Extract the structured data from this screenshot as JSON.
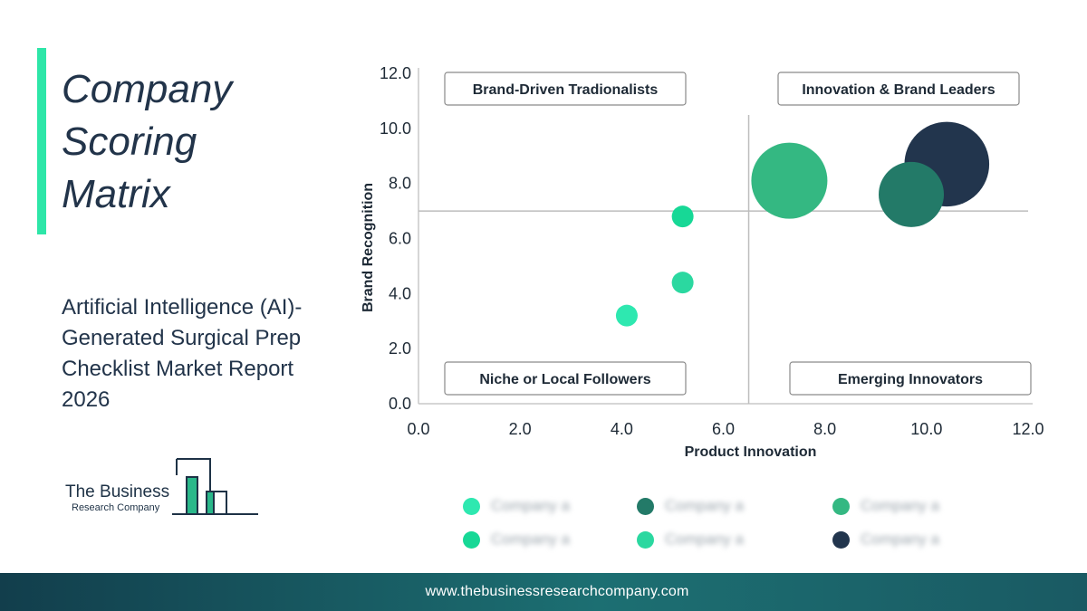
{
  "title_lines": [
    "Company",
    "Scoring",
    "Matrix"
  ],
  "subtitle_lines": [
    "Artificial Intelligence (AI)-",
    "Generated Surgical Prep",
    "Checklist Market Report",
    "2026"
  ],
  "logo": {
    "name": "The Business",
    "sub": "Research Company"
  },
  "footer": {
    "url": "www.thebusinessresearchcompany.com"
  },
  "colors": {
    "accent": "#2ee6a8",
    "footer": "#1a5c66",
    "text": "#1e3246"
  },
  "chart_data": {
    "type": "scatter",
    "xlabel": "Product Innovation",
    "ylabel": "Brand Recognition",
    "xlim": [
      0,
      12
    ],
    "ylim": [
      0,
      12
    ],
    "x_ticks": [
      "0.0",
      "2.0",
      "4.0",
      "6.0",
      "8.0",
      "10.0",
      "12.0"
    ],
    "y_ticks": [
      "0.0",
      "2.0",
      "4.0",
      "6.0",
      "8.0",
      "10.0",
      "12.0"
    ],
    "grid": false,
    "divider_x": 6.5,
    "divider_y": 7.0,
    "quadrants": [
      {
        "label": "Brand-Driven Tradionalists",
        "position": "top-left"
      },
      {
        "label": "Innovation & Brand Leaders",
        "position": "top-right"
      },
      {
        "label": "Niche or Local Followers",
        "position": "bottom-left"
      },
      {
        "label": "Emerging Innovators",
        "position": "bottom-right"
      }
    ],
    "points": [
      {
        "x": 4.1,
        "y": 3.2,
        "size": 1.0,
        "color": "#2ee8b0"
      },
      {
        "x": 5.2,
        "y": 4.4,
        "size": 1.0,
        "color": "#2bd8a0"
      },
      {
        "x": 5.2,
        "y": 6.8,
        "size": 1.0,
        "color": "#17d896"
      },
      {
        "x": 7.3,
        "y": 8.1,
        "size": 3.5,
        "color": "#34b882"
      },
      {
        "x": 10.4,
        "y": 8.7,
        "size": 3.9,
        "color": "#22354d"
      },
      {
        "x": 9.7,
        "y": 7.6,
        "size": 3.0,
        "color": "#237a68"
      }
    ],
    "legend": [
      {
        "label": "Company a",
        "color": "#2ee8b0"
      },
      {
        "label": "Company a",
        "color": "#17d896"
      },
      {
        "label": "Company a",
        "color": "#237a68"
      },
      {
        "label": "Company a",
        "color": "#2bd8a0"
      },
      {
        "label": "Company a",
        "color": "#34b882"
      },
      {
        "label": "Company a",
        "color": "#22354d"
      }
    ]
  }
}
